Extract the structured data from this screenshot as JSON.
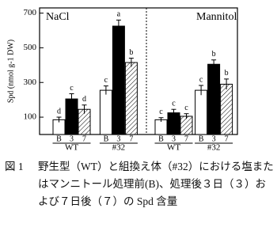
{
  "chart_data": [
    {
      "type": "bar",
      "title": "NaCl",
      "ylabel": "Spd (nmol g-1 DW)",
      "groups": [
        "WT",
        "#32"
      ],
      "categories": [
        "B",
        "3",
        "7",
        "B",
        "3",
        "7"
      ],
      "values": [
        85,
        205,
        145,
        255,
        625,
        415
      ],
      "errors": [
        15,
        30,
        25,
        25,
        35,
        25
      ],
      "annotations": [
        "d",
        "c",
        "d",
        "c",
        "a",
        "b"
      ],
      "fills": [
        "white",
        "black",
        "hatched"
      ],
      "ylim": [
        0,
        730
      ],
      "yticks": [
        100,
        300,
        500,
        700
      ]
    },
    {
      "type": "bar",
      "title": "Mannitol",
      "groups": [
        "WT",
        "#32"
      ],
      "categories": [
        "B",
        "3",
        "7",
        "B",
        "3",
        "7"
      ],
      "values": [
        85,
        125,
        105,
        255,
        405,
        290
      ],
      "errors": [
        12,
        20,
        15,
        28,
        25,
        30
      ],
      "annotations": [
        "c",
        "c",
        "c",
        "c",
        "b",
        "b"
      ],
      "fills": [
        "white",
        "black",
        "hatched"
      ],
      "ylim": [
        0,
        730
      ]
    }
  ],
  "figure_label": "図 1",
  "caption": "野生型（WT）と組換え体（#32）における塩またはマンニトール処理前(B)、処理後３日（３）および７日後（７）の Spd 含量"
}
